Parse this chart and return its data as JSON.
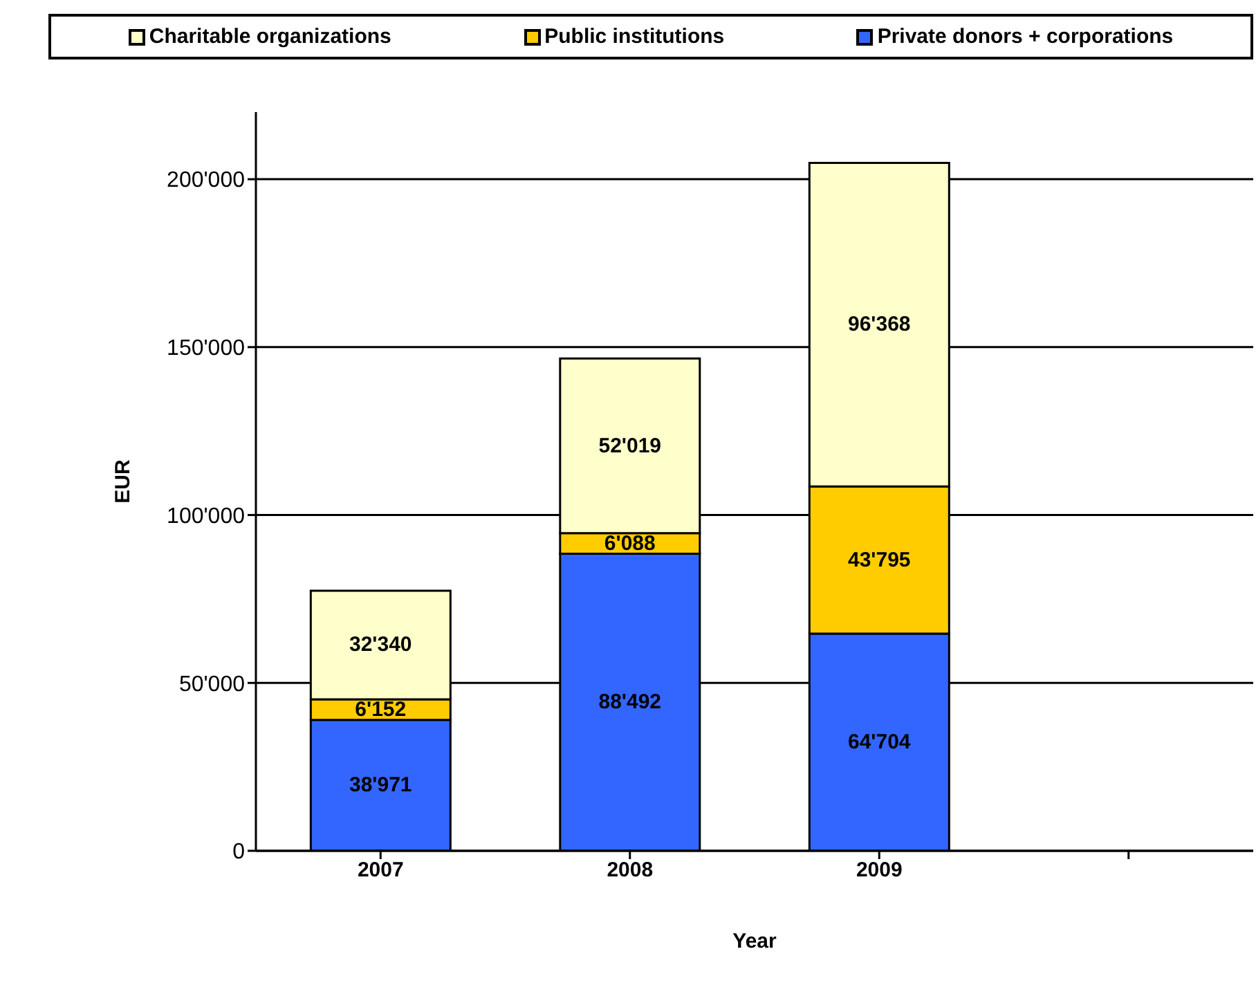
{
  "chart_data": {
    "type": "bar",
    "stacked": true,
    "xlabel": "Year",
    "ylabel": "EUR",
    "categories": [
      "2007",
      "2008",
      "2009",
      null
    ],
    "series": [
      {
        "name": "Private donors + corporations",
        "color": "#3366ff",
        "values": [
          38971,
          88492,
          64704,
          null
        ],
        "value_labels": [
          "38'971",
          "88'492",
          "64'704",
          null
        ]
      },
      {
        "name": "Public institutions",
        "color": "#ffcc00",
        "values": [
          6152,
          6088,
          43795,
          null
        ],
        "value_labels": [
          "6'152",
          "6'088",
          "43'795",
          null
        ]
      },
      {
        "name": "Charitable organizations",
        "color": "#ffffcc",
        "values": [
          32340,
          52019,
          96368,
          null
        ],
        "value_labels": [
          "32'340",
          "52'019",
          "96'368",
          null
        ]
      }
    ],
    "ylim": [
      0,
      220000
    ],
    "yticks": [
      0,
      {
        "value": 50000,
        "label": "50'000"
      },
      {
        "value": 100000,
        "label": "100'000"
      },
      {
        "value": 150000,
        "label": "150'000"
      },
      {
        "value": 200000,
        "label": "200'000"
      }
    ],
    "grid": "y",
    "legend": "top"
  }
}
